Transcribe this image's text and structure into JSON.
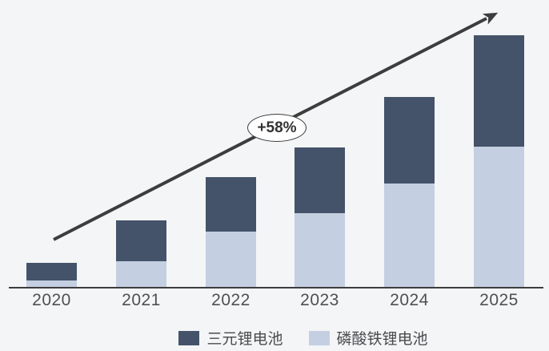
{
  "background_color": "#f4f5f6",
  "chart_data": {
    "type": "bar",
    "stacked": true,
    "title": "",
    "xlabel": "",
    "ylabel": "",
    "value_axis_visible": false,
    "grid": false,
    "legend_position": "bottom",
    "categories": [
      "2020",
      "2021",
      "2022",
      "2023",
      "2024",
      "2025"
    ],
    "series": [
      {
        "name": "磷酸铁锂电池",
        "color": "#c4cfe1",
        "stack_position": "bottom",
        "values": [
          9,
          33,
          70,
          93,
          130,
          176
        ]
      },
      {
        "name": "三元锂电池",
        "color": "#445369",
        "stack_position": "top",
        "values": [
          22,
          51,
          68,
          82,
          108,
          139
        ]
      }
    ],
    "totals": [
      31,
      84,
      138,
      175,
      238,
      315
    ],
    "annotation": {
      "label": "+58%",
      "shape": "ellipse",
      "meaning": "trend growth rate on arrow"
    }
  },
  "legend": {
    "items": [
      {
        "label": "三元锂电池",
        "color": "#445369"
      },
      {
        "label": "磷酸铁锂电池",
        "color": "#c4cfe1"
      }
    ]
  },
  "trend_arrow": {
    "color": "#3d3d3d",
    "direction": "up-right"
  },
  "axis": {
    "line_color": "#3d3d3d",
    "label_color": "#4f5052"
  }
}
